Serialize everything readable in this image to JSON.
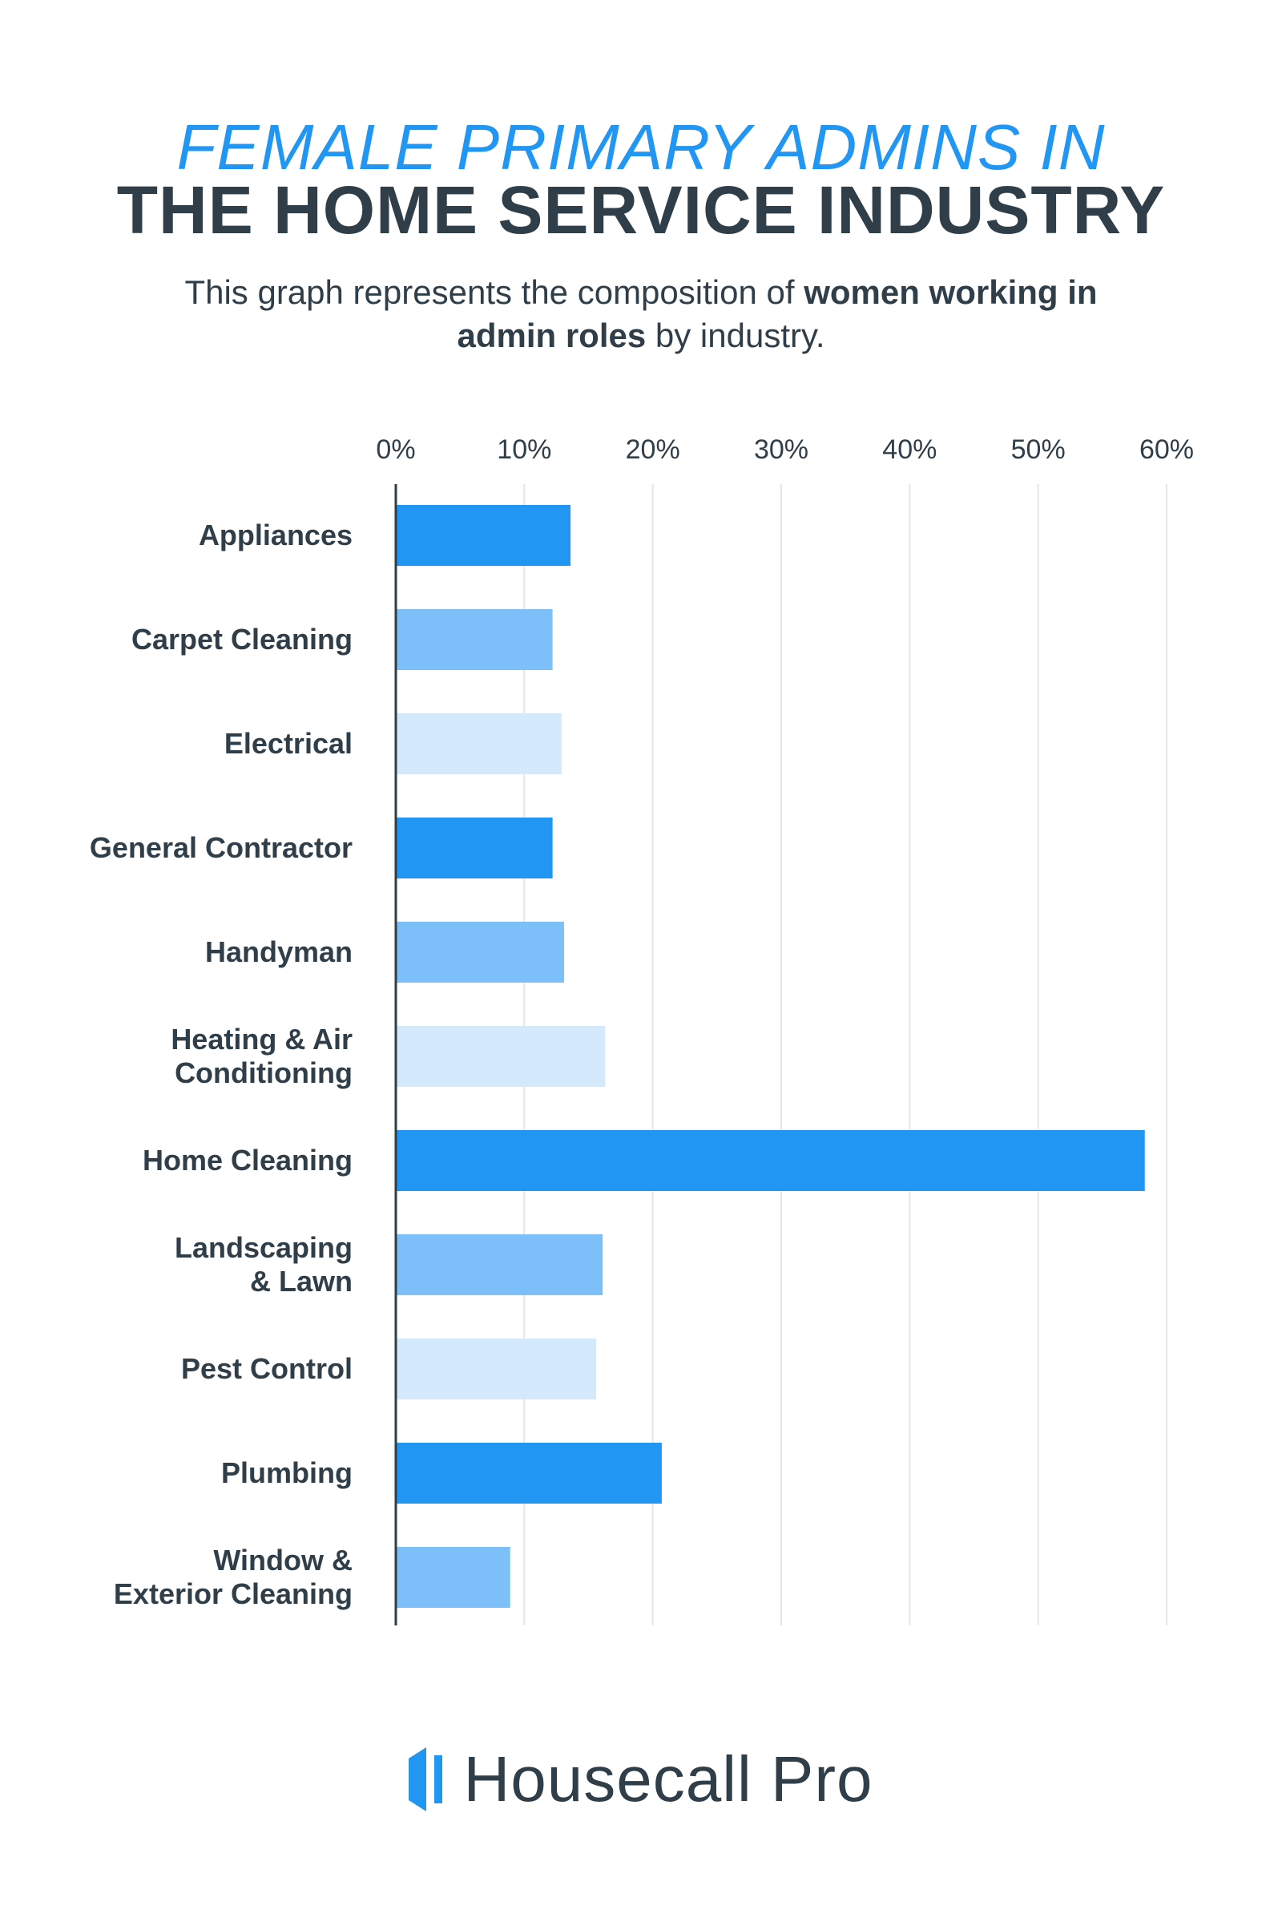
{
  "header": {
    "title_line1": "FEMALE PRIMARY ADMINS IN",
    "title_line2": "THE HOME SERVICE INDUSTRY",
    "subtitle_part1": "This graph represents the composition of ",
    "subtitle_bold": "women working in admin roles",
    "subtitle_part2": " by industry."
  },
  "colors": {
    "accent": "#2196f3",
    "bar_dark": "#2196f3",
    "bar_mid": "#7dbff9",
    "bar_light": "#d4e9fc",
    "text": "#2f3e48",
    "grid": "#e6e6e6"
  },
  "chart_data": {
    "type": "bar",
    "orientation": "horizontal",
    "categories": [
      [
        "Appliances"
      ],
      [
        "Carpet Cleaning"
      ],
      [
        "Electrical"
      ],
      [
        "General Contractor"
      ],
      [
        "Handyman"
      ],
      [
        "Heating & Air",
        "Conditioning"
      ],
      [
        "Home Cleaning"
      ],
      [
        "Landscaping",
        "& Lawn"
      ],
      [
        "Pest Control"
      ],
      [
        "Plumbing"
      ],
      [
        "Window &",
        "Exterior Cleaning"
      ]
    ],
    "values": [
      13.6,
      12.2,
      12.9,
      12.2,
      13.1,
      16.3,
      58.3,
      16.1,
      15.6,
      20.7,
      8.9
    ],
    "bar_colors": [
      "#2196f3",
      "#7dbff9",
      "#d4e9fc",
      "#2196f3",
      "#7dbff9",
      "#d4e9fc",
      "#2196f3",
      "#7dbff9",
      "#d4e9fc",
      "#2196f3",
      "#7dbff9"
    ],
    "xlim": [
      0,
      60
    ],
    "xticks": [
      0,
      10,
      20,
      30,
      40,
      50,
      60
    ],
    "xtick_labels": [
      "0%",
      "10%",
      "20%",
      "30%",
      "40%",
      "50%",
      "60%"
    ],
    "grid": true
  },
  "logo": {
    "text": "Housecall Pro"
  }
}
